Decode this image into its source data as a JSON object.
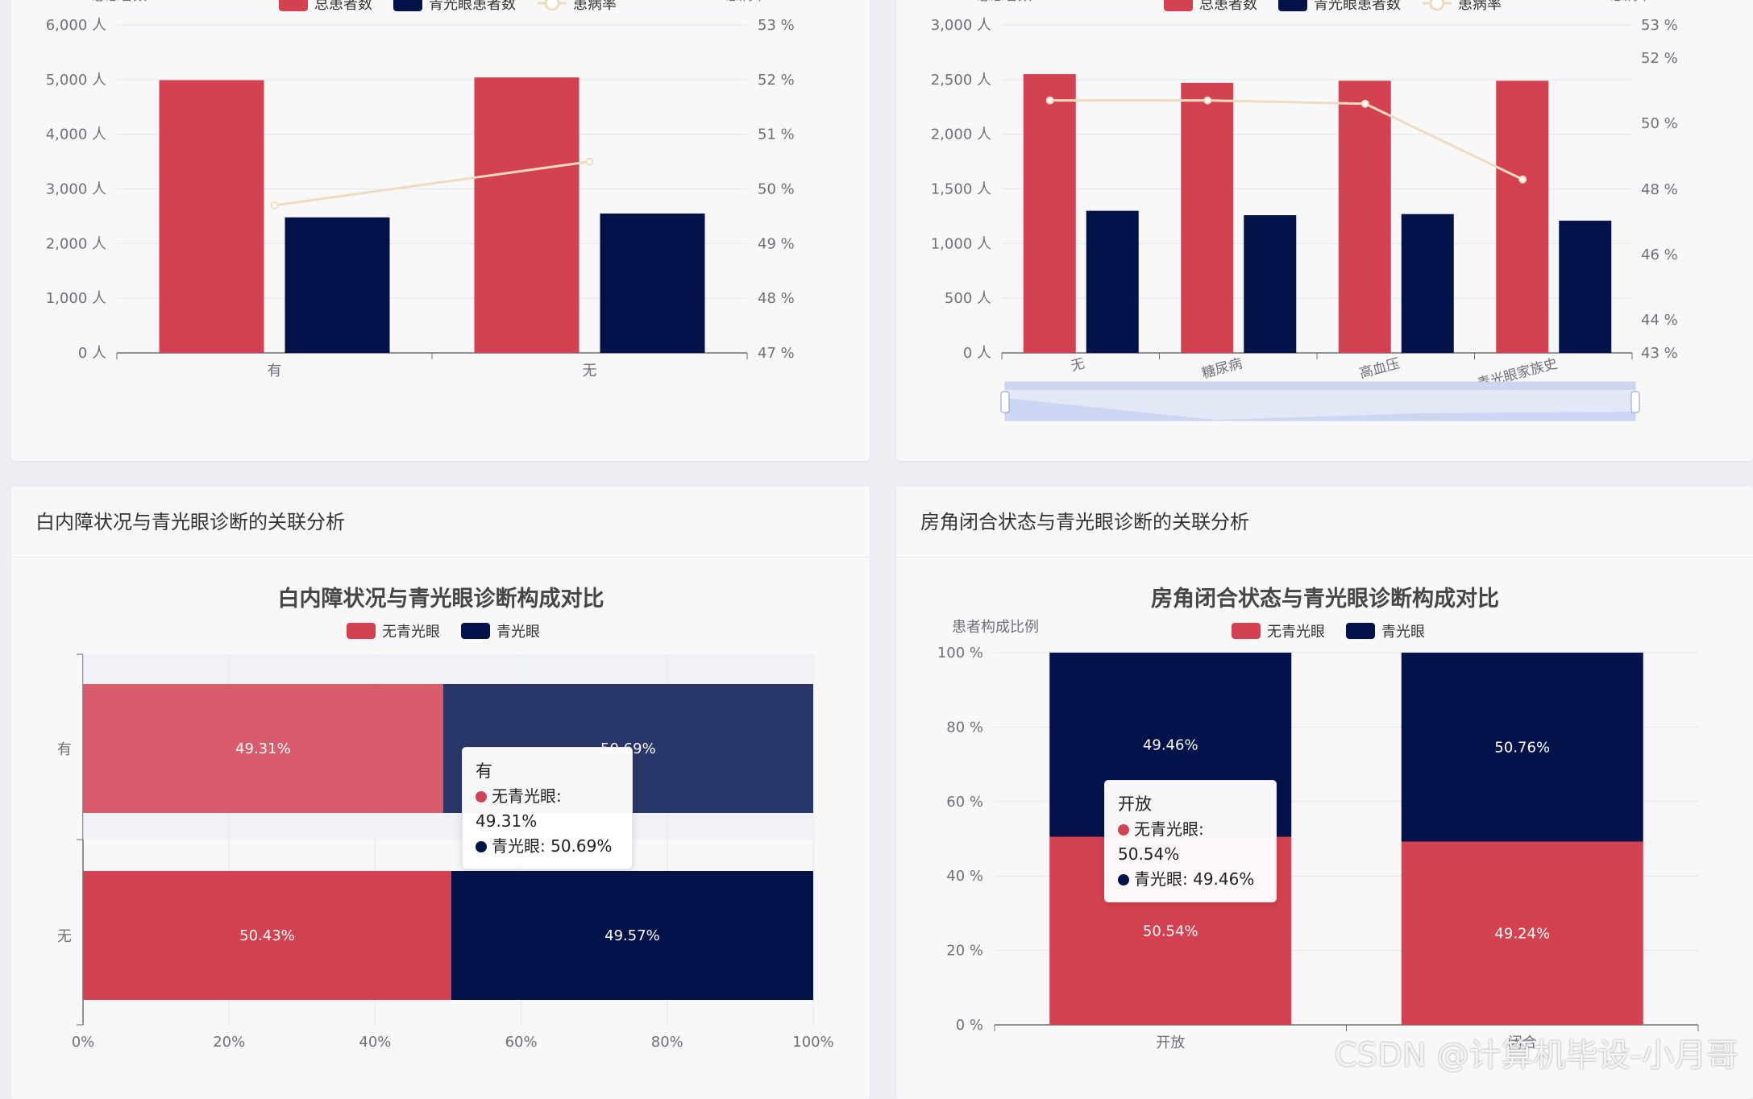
{
  "colors": {
    "total": "#d44150",
    "glaucoma": "#03134a",
    "rate": "#eddcbf",
    "axis_text": "#6e7079",
    "grid": "#e0e6f1"
  },
  "charts": {
    "top_left": {
      "legend": [
        "总患者数",
        "青光眼患者数",
        "患病率"
      ],
      "y_left_name": "总患者数",
      "y_right_name": "患病率",
      "y_left_ticks": [
        "0 人",
        "1,000 人",
        "2,000 人",
        "3,000 人",
        "4,000 人",
        "5,000 人",
        "6,000 人"
      ],
      "y_right_ticks": [
        "47 %",
        "48 %",
        "49 %",
        "50 %",
        "51 %",
        "52 %",
        "53 %"
      ]
    },
    "top_right": {
      "legend": [
        "总患者数",
        "青光眼患者数",
        "患病率"
      ],
      "y_left_name": "总患者数",
      "y_right_name": "患病率",
      "y_left_ticks": [
        "0 人",
        "500 人",
        "1,000 人",
        "1,500 人",
        "2,000 人",
        "2,500 人",
        "3,000 人"
      ],
      "y_right_ticks": [
        "43 %",
        "44 %",
        "46 %",
        "48 %",
        "50 %",
        "52 %",
        "53 %"
      ]
    },
    "bottom_left": {
      "card_title": "白内障状况与青光眼诊断的关联分析",
      "title": "白内障状况与青光眼诊断构成对比",
      "legend": [
        "无青光眼",
        "青光眼"
      ],
      "x_ticks": [
        "0%",
        "20%",
        "40%",
        "60%",
        "80%",
        "100%"
      ],
      "tooltip": {
        "title": "有",
        "rows": [
          "无青光眼: 49.31%",
          "青光眼: 50.69%"
        ]
      }
    },
    "bottom_right": {
      "card_title": "房角闭合状态与青光眼诊断的关联分析",
      "title": "房角闭合状态与青光眼诊断构成对比",
      "y_name": "患者构成比例",
      "legend": [
        "无青光眼",
        "青光眼"
      ],
      "y_ticks": [
        "0 %",
        "20 %",
        "40 %",
        "60 %",
        "80 %",
        "100 %"
      ],
      "tooltip": {
        "title": "开放",
        "rows": [
          "无青光眼: 50.54%",
          "青光眼: 49.46%"
        ]
      }
    }
  },
  "chart_data": [
    {
      "type": "bar",
      "categories": [
        "有",
        "无"
      ],
      "series": [
        {
          "name": "总患者数",
          "values": [
            4990,
            5040
          ]
        },
        {
          "name": "青光眼患者数",
          "values": [
            2480,
            2550
          ]
        },
        {
          "name": "患病率",
          "type": "line",
          "values": [
            49.7,
            50.5
          ]
        }
      ],
      "ylabel": "总患者数",
      "ylim": [
        0,
        6000
      ],
      "y2label": "患病率",
      "y2lim": [
        47,
        53
      ],
      "legend_position": "top"
    },
    {
      "type": "bar",
      "categories": [
        "无",
        "糖尿病",
        "高血压",
        "青光眼家族史"
      ],
      "series": [
        {
          "name": "总患者数",
          "values": [
            2550,
            2470,
            2490,
            2490
          ]
        },
        {
          "name": "青光眼患者数",
          "values": [
            1300,
            1260,
            1270,
            1210
          ]
        },
        {
          "name": "患病率",
          "type": "line",
          "values": [
            50.7,
            50.7,
            50.6,
            48.3
          ]
        }
      ],
      "ylabel": "总患者数",
      "ylim": [
        0,
        3000
      ],
      "y2label": "患病率",
      "legend_position": "top",
      "data_zoom": true
    },
    {
      "type": "bar",
      "orientation": "horizontal",
      "stacked": true,
      "title": "白内障状况与青光眼诊断构成对比",
      "categories": [
        "有",
        "无"
      ],
      "series": [
        {
          "name": "无青光眼",
          "values": [
            49.31,
            50.43
          ],
          "labels": [
            "49.31%",
            "50.43%"
          ]
        },
        {
          "name": "青光眼",
          "values": [
            50.69,
            49.57
          ],
          "labels": [
            "50.69%",
            "49.57%"
          ]
        }
      ],
      "xlim": [
        0,
        100
      ],
      "legend_position": "top"
    },
    {
      "type": "bar",
      "stacked": true,
      "title": "房角闭合状态与青光眼诊断构成对比",
      "categories": [
        "开放",
        "闭合"
      ],
      "series": [
        {
          "name": "无青光眼",
          "values": [
            50.54,
            49.24
          ],
          "labels": [
            "50.54%",
            "49.24%"
          ]
        },
        {
          "name": "青光眼",
          "values": [
            49.46,
            50.76
          ],
          "labels": [
            "49.46%",
            "50.76%"
          ]
        }
      ],
      "ylabel": "患者构成比例",
      "ylim": [
        0,
        100
      ],
      "legend_position": "top"
    }
  ],
  "watermark": "CSDN @计算机毕设-小月哥"
}
